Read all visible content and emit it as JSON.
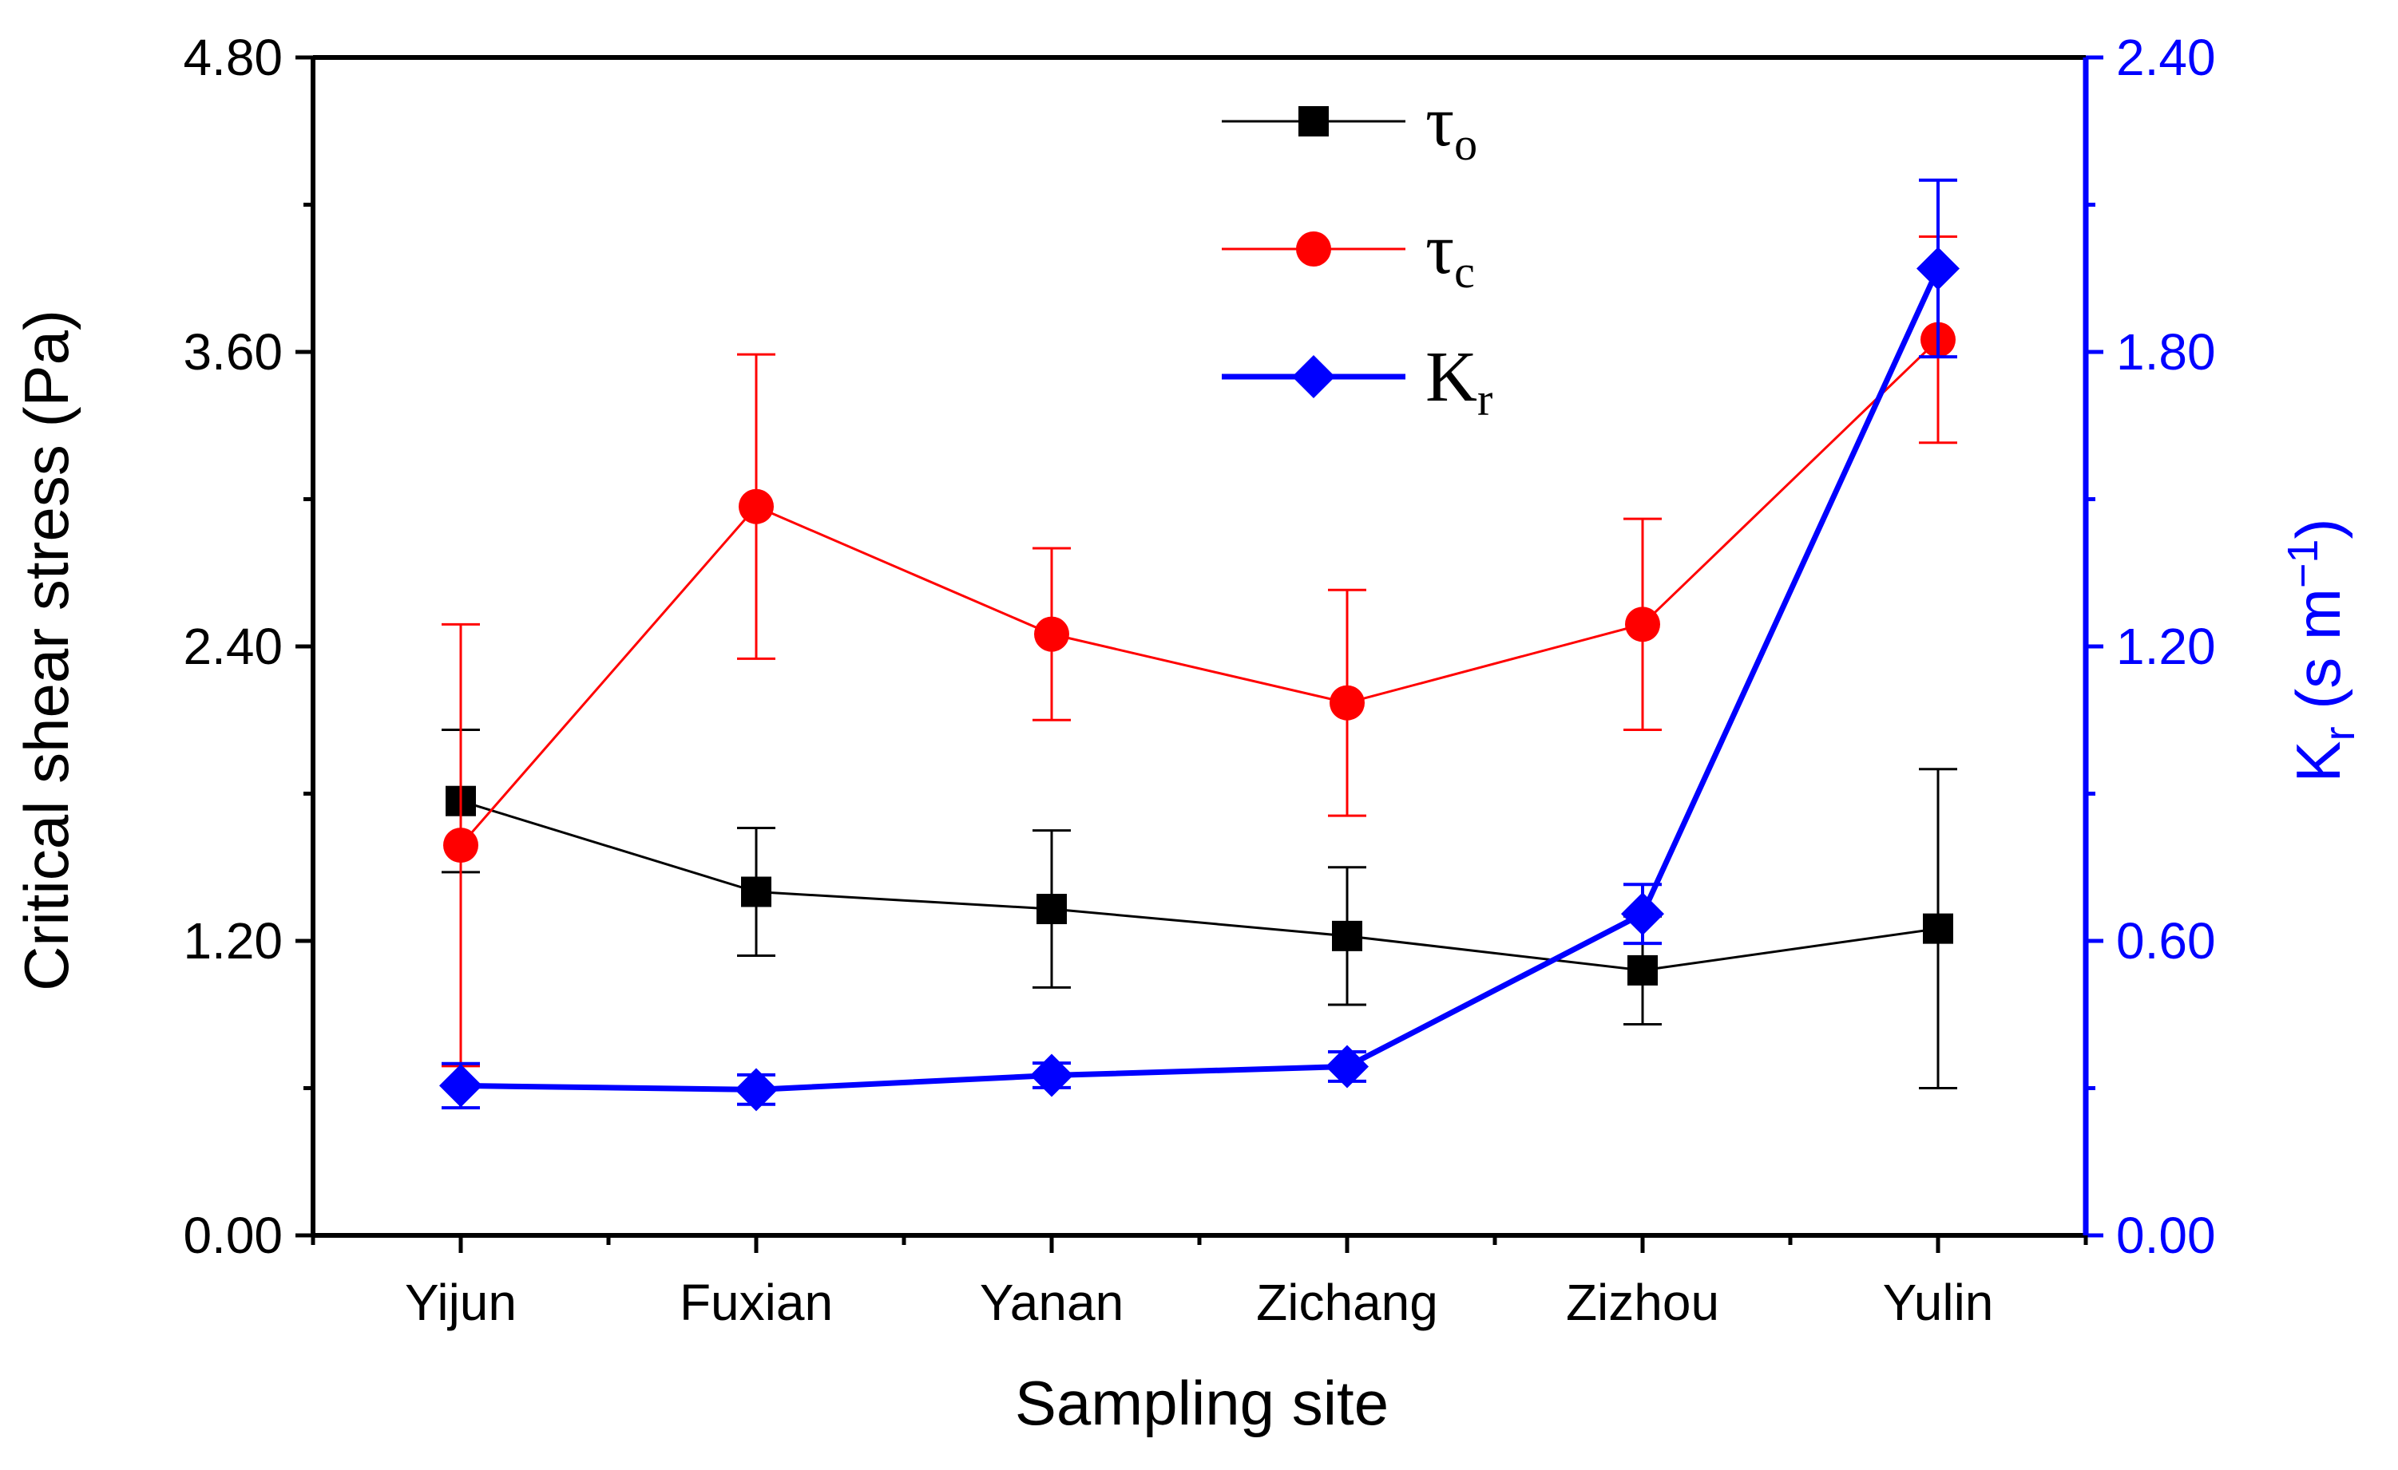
{
  "chart_data": {
    "type": "line",
    "categories": [
      "Yijun",
      "Fuxian",
      "Yanan",
      "Zichang",
      "Zizhou",
      "Yulin"
    ],
    "xlabel": "Sampling site",
    "left_axis": {
      "label": "Critical shear stress (Pa)",
      "ylim": [
        0,
        4.8
      ],
      "ticks": [
        "0.00",
        "1.20",
        "2.40",
        "3.60",
        "4.80"
      ]
    },
    "right_axis": {
      "label_main": "K",
      "label_sub": "r",
      "label_rest": " (s m",
      "label_sup": "−1",
      "label_close": ")",
      "ylim": [
        0,
        2.4
      ],
      "ticks": [
        "0.00",
        "0.60",
        "1.20",
        "1.80",
        "2.40"
      ],
      "color": "#0000ff"
    },
    "series": [
      {
        "name": "τo",
        "symbol": "τ",
        "subscript": "o",
        "axis": "left",
        "color": "#000000",
        "marker": "square",
        "values": [
          1.77,
          1.4,
          1.33,
          1.22,
          1.08,
          1.25
        ],
        "errors": [
          0.29,
          0.26,
          0.32,
          0.28,
          0.22,
          0.65
        ]
      },
      {
        "name": "τc",
        "symbol": "τ",
        "subscript": "c",
        "axis": "left",
        "color": "#ff0000",
        "marker": "circle",
        "values": [
          1.59,
          2.97,
          2.45,
          2.17,
          2.49,
          3.65
        ],
        "errors": [
          0.9,
          0.62,
          0.35,
          0.46,
          0.43,
          0.42
        ]
      },
      {
        "name": "Kr",
        "symbol": "K",
        "subscript": "r",
        "axis": "right",
        "color": "#0000ff",
        "marker": "diamond",
        "values": [
          0.305,
          0.297,
          0.326,
          0.344,
          0.655,
          1.97
        ],
        "errors": [
          0.045,
          0.03,
          0.025,
          0.03,
          0.06,
          0.18
        ]
      }
    ]
  }
}
